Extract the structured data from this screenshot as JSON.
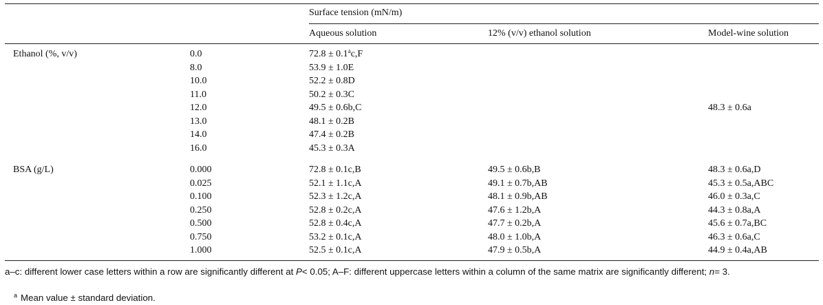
{
  "table": {
    "group_header": "Surface tension (mN/m)",
    "columns": [
      "Aqueous solution",
      "12% (v/v) ethanol solution",
      "Model-wine solution"
    ],
    "sections": [
      {
        "label": "Ethanol (%, v/v)",
        "rows": [
          [
            "0.0",
            {
              "text": "72.8 ± 0.1",
              "sup": "a",
              "suffix": "c,F"
            },
            null,
            null
          ],
          [
            "8.0",
            "53.9 ± 1.0E",
            null,
            null
          ],
          [
            "10.0",
            "52.2 ± 0.8D",
            null,
            null
          ],
          [
            "11.0",
            "50.2 ± 0.3C",
            null,
            null
          ],
          [
            "12.0",
            "49.5 ± 0.6b,C",
            null,
            "48.3 ± 0.6a"
          ],
          [
            "13.0",
            "48.1 ± 0.2B",
            null,
            null
          ],
          [
            "14.0",
            "47.4 ± 0.2B",
            null,
            null
          ],
          [
            "16.0",
            "45.3 ± 0.3A",
            null,
            null
          ]
        ]
      },
      {
        "label": "BSA (g/L)",
        "rows": [
          [
            "0.000",
            "72.8 ± 0.1c,B",
            "49.5 ± 0.6b,B",
            "48.3 ± 0.6a,D"
          ],
          [
            "0.025",
            "52.1 ± 1.1c,A",
            "49.1 ± 0.7b,AB",
            "45.3 ± 0.5a,ABC"
          ],
          [
            "0.100",
            "52.3 ± 1.2c,A",
            "48.1 ± 0.9b,AB",
            "46.0 ± 0.3a,C"
          ],
          [
            "0.250",
            "52.8 ± 0.2c,A",
            "47.6 ± 1.2b,A",
            "44.3 ± 0.8a,A"
          ],
          [
            "0.500",
            "52.8 ± 0.4c,A",
            "47.7 ± 0.2b,A",
            "45.6 ± 0.7a,BC"
          ],
          [
            "0.750",
            "53.2 ± 0.1c,A",
            "48.0 ± 1.0b,A",
            "46.3 ± 0.6a,C"
          ],
          [
            "1.000",
            "52.5 ± 0.1c,A",
            "47.9 ± 0.5b,A",
            "44.9 ± 0.4a,AB"
          ]
        ]
      }
    ]
  },
  "footnotes": [
    {
      "parts": [
        "a–c: different lower case letters within a row are significantly different at ",
        "P",
        "< 0.05; A–F: different uppercase letters within a column of the same matrix are significantly different; ",
        "n",
        "= 3."
      ]
    },
    {
      "mark": "a",
      "text": "Mean value ± standard deviation."
    }
  ]
}
